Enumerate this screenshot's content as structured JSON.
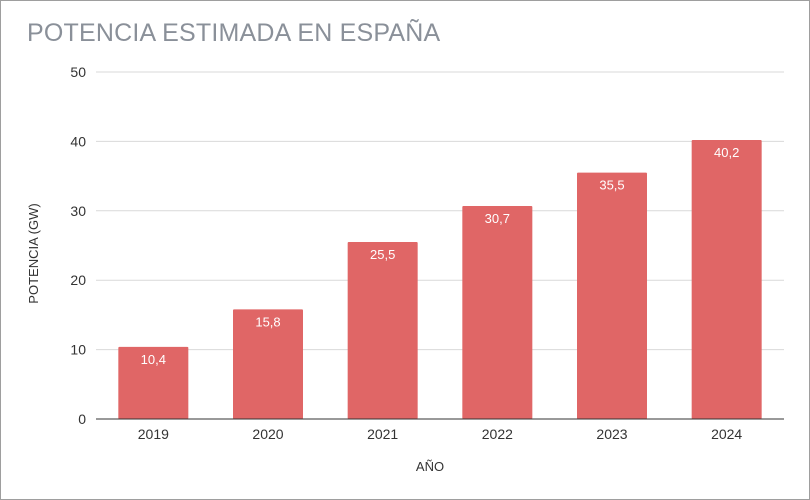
{
  "chart_data": {
    "type": "bar",
    "title": "POTENCIA ESTIMADA EN ESPAÑA",
    "xlabel": "AÑO",
    "ylabel": "POTENCIA (GW)",
    "categories": [
      "2019",
      "2020",
      "2021",
      "2022",
      "2023",
      "2024"
    ],
    "values": [
      10.4,
      15.8,
      25.5,
      30.7,
      35.5,
      40.2
    ],
    "data_labels": [
      "10,4",
      "15,8",
      "25,5",
      "30,7",
      "35,5",
      "40,2"
    ],
    "ylim": [
      0,
      50
    ],
    "yticks": [
      0,
      10,
      20,
      30,
      40,
      50
    ],
    "grid": true,
    "bar_color": "#e06666"
  }
}
